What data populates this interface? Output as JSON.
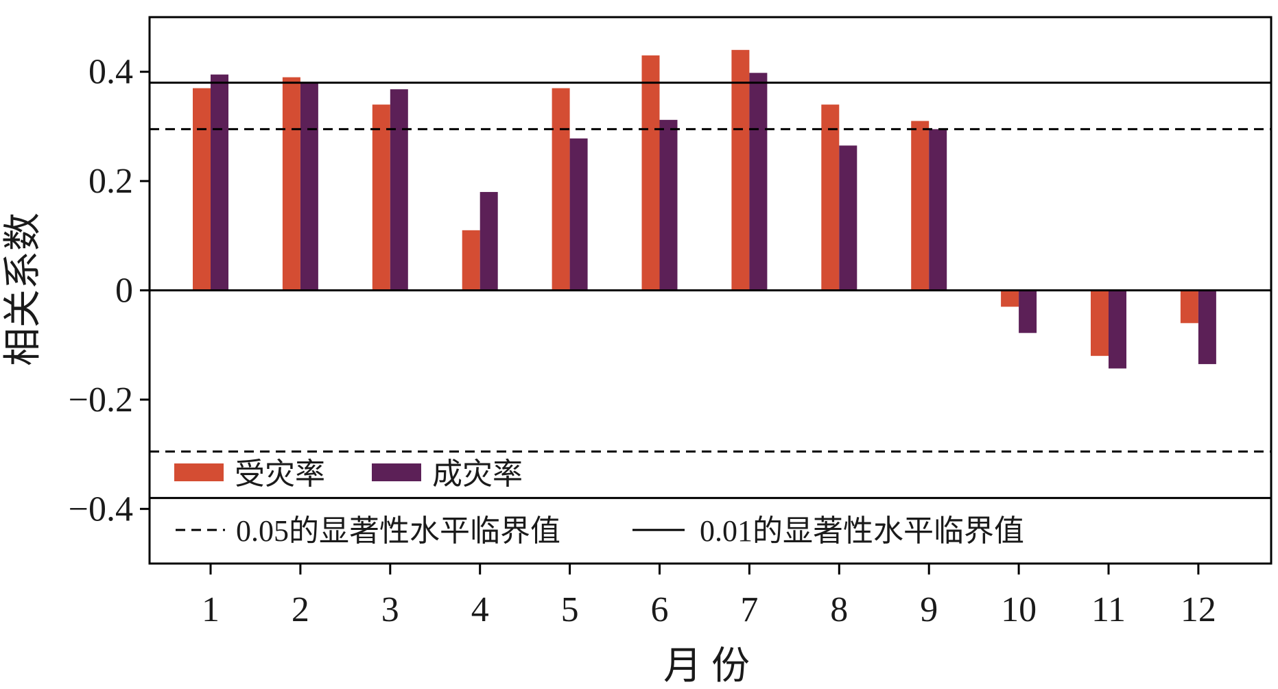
{
  "chart_data": {
    "type": "bar",
    "xlabel": "月 份",
    "ylabel": "相关系数",
    "ylim": [
      -0.5,
      0.5
    ],
    "yticks": [
      -0.4,
      -0.2,
      0,
      0.2,
      0.4
    ],
    "ytick_labels": [
      "−0.4",
      "−0.2",
      "0",
      "0.2",
      "0.4"
    ],
    "categories": [
      "1",
      "2",
      "3",
      "4",
      "5",
      "6",
      "7",
      "8",
      "9",
      "10",
      "11",
      "12"
    ],
    "series": [
      {
        "name": "受灾率",
        "color": "#d44d33",
        "values": [
          0.37,
          0.39,
          0.34,
          0.11,
          0.37,
          0.43,
          0.44,
          0.34,
          0.31,
          -0.03,
          -0.12,
          -0.06
        ]
      },
      {
        "name": "成灾率",
        "color": "#5c2057",
        "values": [
          0.395,
          0.38,
          0.368,
          0.18,
          0.278,
          0.312,
          0.398,
          0.265,
          0.295,
          -0.078,
          -0.143,
          -0.135
        ]
      }
    ],
    "reference_lines": [
      {
        "name": "0.05的显著性水平临界值",
        "style": "dashed",
        "values": [
          0.295,
          -0.295
        ]
      },
      {
        "name": "0.01的显著性水平临界值",
        "style": "solid",
        "values": [
          0.38,
          -0.38
        ]
      }
    ],
    "grid": false,
    "legend_position": "lower-left"
  }
}
